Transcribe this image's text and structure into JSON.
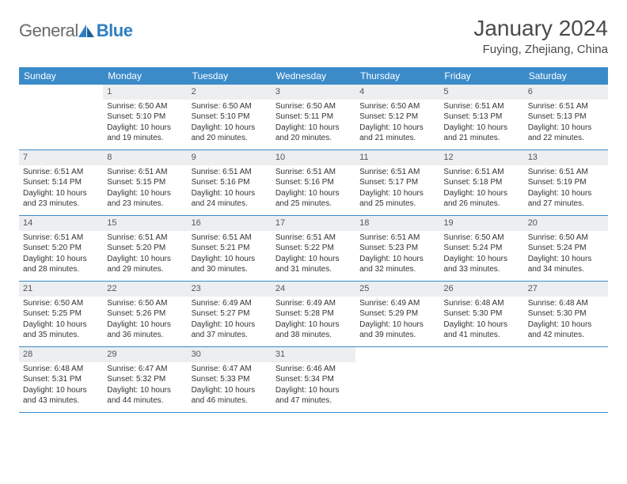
{
  "brand": {
    "part1": "General",
    "part2": "Blue"
  },
  "title": "January 2024",
  "location": "Fuying, Zhejiang, China",
  "colors": {
    "header_bg": "#3b8bc9",
    "header_fg": "#ffffff",
    "daynum_bg": "#eceef0",
    "border": "#3b8bc9",
    "text": "#333333",
    "brand_gray": "#6a6a6a",
    "brand_blue": "#2f7fc1"
  },
  "weekdays": [
    "Sunday",
    "Monday",
    "Tuesday",
    "Wednesday",
    "Thursday",
    "Friday",
    "Saturday"
  ],
  "start_offset": 1,
  "days": [
    {
      "n": 1,
      "sr": "6:50 AM",
      "ss": "5:10 PM",
      "dl": "10 hours and 19 minutes."
    },
    {
      "n": 2,
      "sr": "6:50 AM",
      "ss": "5:10 PM",
      "dl": "10 hours and 20 minutes."
    },
    {
      "n": 3,
      "sr": "6:50 AM",
      "ss": "5:11 PM",
      "dl": "10 hours and 20 minutes."
    },
    {
      "n": 4,
      "sr": "6:50 AM",
      "ss": "5:12 PM",
      "dl": "10 hours and 21 minutes."
    },
    {
      "n": 5,
      "sr": "6:51 AM",
      "ss": "5:13 PM",
      "dl": "10 hours and 21 minutes."
    },
    {
      "n": 6,
      "sr": "6:51 AM",
      "ss": "5:13 PM",
      "dl": "10 hours and 22 minutes."
    },
    {
      "n": 7,
      "sr": "6:51 AM",
      "ss": "5:14 PM",
      "dl": "10 hours and 23 minutes."
    },
    {
      "n": 8,
      "sr": "6:51 AM",
      "ss": "5:15 PM",
      "dl": "10 hours and 23 minutes."
    },
    {
      "n": 9,
      "sr": "6:51 AM",
      "ss": "5:16 PM",
      "dl": "10 hours and 24 minutes."
    },
    {
      "n": 10,
      "sr": "6:51 AM",
      "ss": "5:16 PM",
      "dl": "10 hours and 25 minutes."
    },
    {
      "n": 11,
      "sr": "6:51 AM",
      "ss": "5:17 PM",
      "dl": "10 hours and 25 minutes."
    },
    {
      "n": 12,
      "sr": "6:51 AM",
      "ss": "5:18 PM",
      "dl": "10 hours and 26 minutes."
    },
    {
      "n": 13,
      "sr": "6:51 AM",
      "ss": "5:19 PM",
      "dl": "10 hours and 27 minutes."
    },
    {
      "n": 14,
      "sr": "6:51 AM",
      "ss": "5:20 PM",
      "dl": "10 hours and 28 minutes."
    },
    {
      "n": 15,
      "sr": "6:51 AM",
      "ss": "5:20 PM",
      "dl": "10 hours and 29 minutes."
    },
    {
      "n": 16,
      "sr": "6:51 AM",
      "ss": "5:21 PM",
      "dl": "10 hours and 30 minutes."
    },
    {
      "n": 17,
      "sr": "6:51 AM",
      "ss": "5:22 PM",
      "dl": "10 hours and 31 minutes."
    },
    {
      "n": 18,
      "sr": "6:51 AM",
      "ss": "5:23 PM",
      "dl": "10 hours and 32 minutes."
    },
    {
      "n": 19,
      "sr": "6:50 AM",
      "ss": "5:24 PM",
      "dl": "10 hours and 33 minutes."
    },
    {
      "n": 20,
      "sr": "6:50 AM",
      "ss": "5:24 PM",
      "dl": "10 hours and 34 minutes."
    },
    {
      "n": 21,
      "sr": "6:50 AM",
      "ss": "5:25 PM",
      "dl": "10 hours and 35 minutes."
    },
    {
      "n": 22,
      "sr": "6:50 AM",
      "ss": "5:26 PM",
      "dl": "10 hours and 36 minutes."
    },
    {
      "n": 23,
      "sr": "6:49 AM",
      "ss": "5:27 PM",
      "dl": "10 hours and 37 minutes."
    },
    {
      "n": 24,
      "sr": "6:49 AM",
      "ss": "5:28 PM",
      "dl": "10 hours and 38 minutes."
    },
    {
      "n": 25,
      "sr": "6:49 AM",
      "ss": "5:29 PM",
      "dl": "10 hours and 39 minutes."
    },
    {
      "n": 26,
      "sr": "6:48 AM",
      "ss": "5:30 PM",
      "dl": "10 hours and 41 minutes."
    },
    {
      "n": 27,
      "sr": "6:48 AM",
      "ss": "5:30 PM",
      "dl": "10 hours and 42 minutes."
    },
    {
      "n": 28,
      "sr": "6:48 AM",
      "ss": "5:31 PM",
      "dl": "10 hours and 43 minutes."
    },
    {
      "n": 29,
      "sr": "6:47 AM",
      "ss": "5:32 PM",
      "dl": "10 hours and 44 minutes."
    },
    {
      "n": 30,
      "sr": "6:47 AM",
      "ss": "5:33 PM",
      "dl": "10 hours and 46 minutes."
    },
    {
      "n": 31,
      "sr": "6:46 AM",
      "ss": "5:34 PM",
      "dl": "10 hours and 47 minutes."
    }
  ],
  "labels": {
    "sunrise": "Sunrise:",
    "sunset": "Sunset:",
    "daylight": "Daylight:"
  }
}
